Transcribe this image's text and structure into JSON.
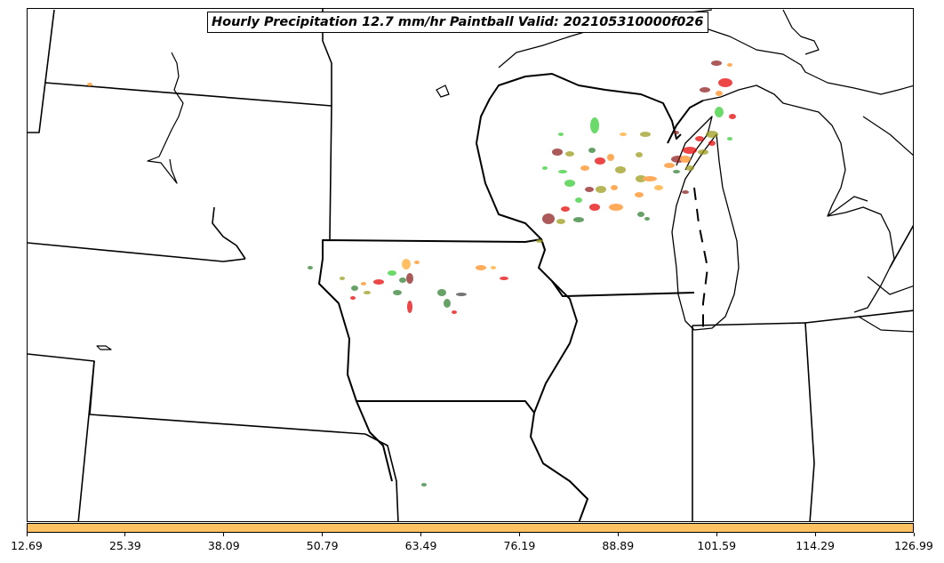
{
  "title": "Hourly Precipitation 12.7 mm/hr Paintball Valid: 202105310000f026",
  "colorbar": {
    "color": "#ffc263",
    "ticks": [
      "12.69",
      "25.39",
      "38.09",
      "50.79",
      "63.49",
      "76.19",
      "88.89",
      "101.59",
      "114.29",
      "126.99"
    ]
  },
  "colors": {
    "green": "#33cc33",
    "dark_green": "#2e7d2e",
    "red": "#e60000",
    "dark_red": "#8b1a1a",
    "orange": "#ff8c1a",
    "light_orange": "#ffa726",
    "olive": "#9a9a1a",
    "gray": "#404040"
  }
}
